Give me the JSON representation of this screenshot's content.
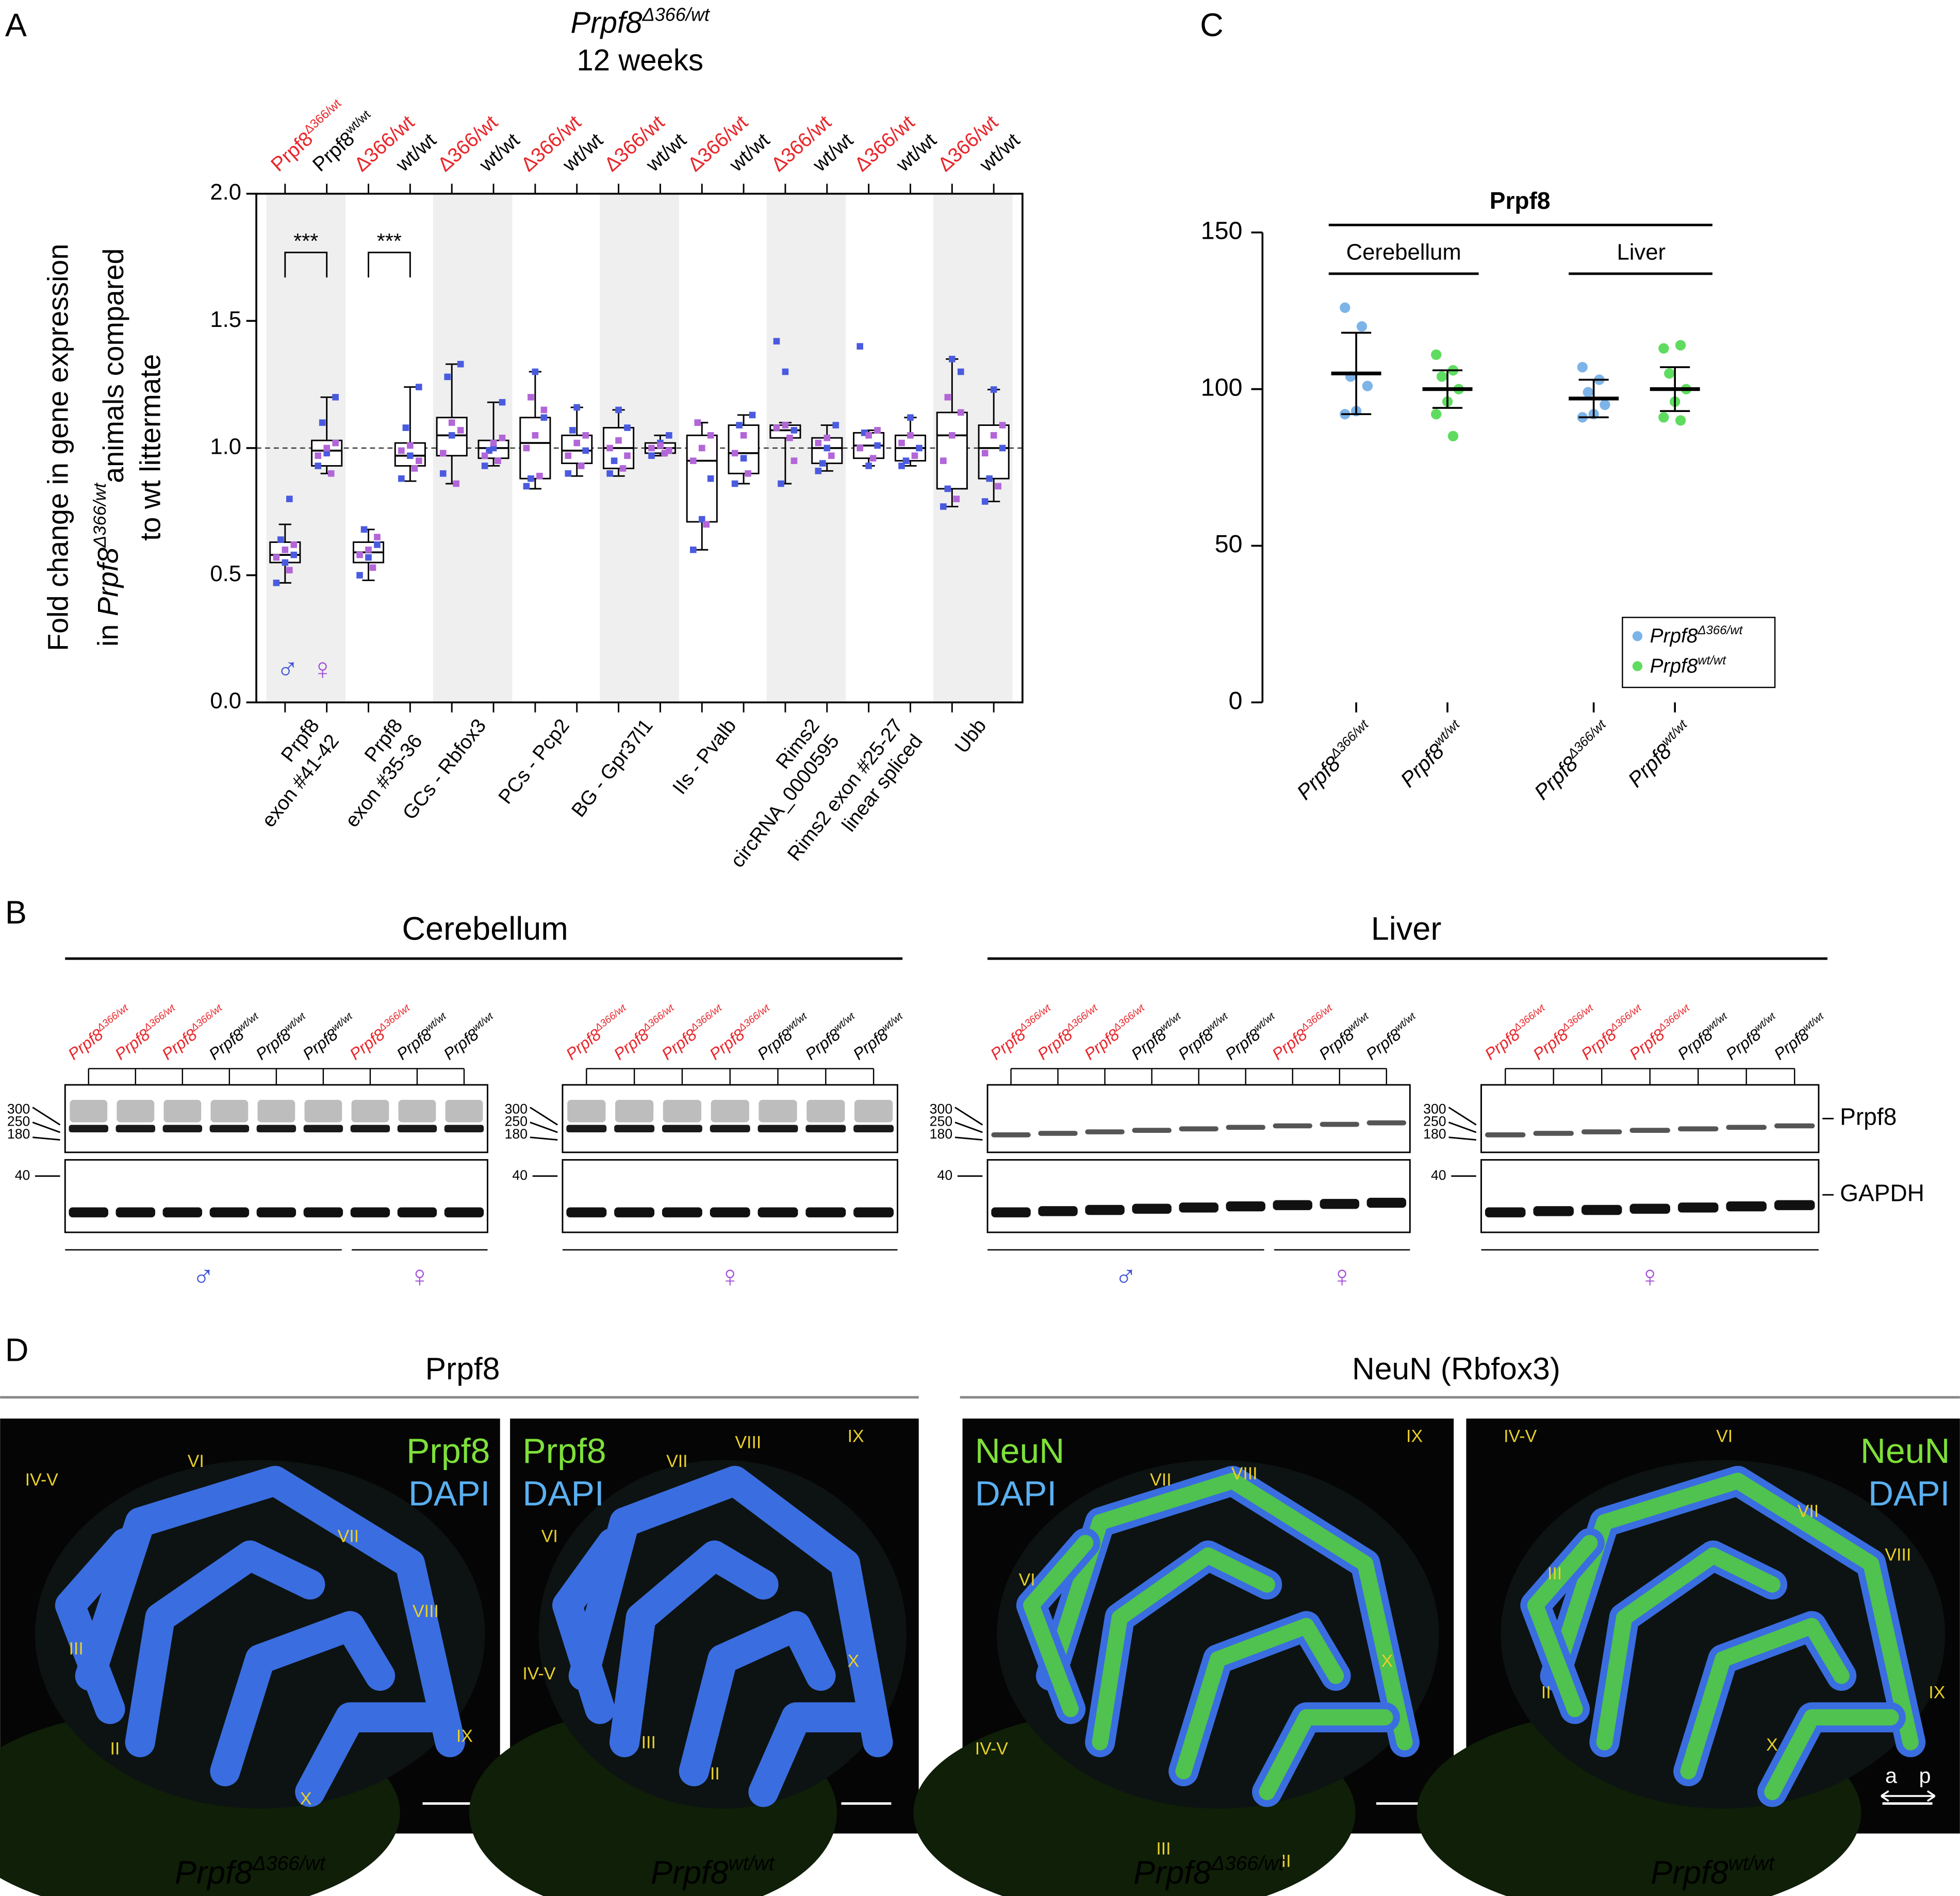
{
  "chart_data": [
    {
      "type": "box",
      "panel": "A",
      "title": {
        "text": "Prpf8",
        "sup": "Δ366/wt"
      },
      "subtitle": "12 weeks",
      "y_label": {
        "line1": "Fold change in gene expression",
        "line2_pre": "in ",
        "line2_gene": "Prpf8",
        "line2_sup": "Δ366/wt",
        "line2_post": "animals compared",
        "line3": "to wt littermate"
      },
      "ylim": [
        0,
        2
      ],
      "yticks": [
        {
          "value": 0,
          "label": "0.0"
        },
        0.5,
        {
          "value": 1,
          "label": "1.0"
        },
        1.5,
        {
          "value": 2,
          "label": "2.0"
        }
      ],
      "reference_line": 1,
      "shaded_pairs": [
        0,
        2,
        4,
        6,
        8
      ],
      "group_labels": [
        {
          "text": "Prpf8",
          "sup": "Δ366/wt",
          "color": "#e8262b"
        },
        {
          "text": "Prpf8",
          "sup": "wt/wt",
          "color": "#000000"
        },
        {
          "text": "Δ366/wt",
          "color": "#e8262b"
        },
        {
          "text": "wt/wt",
          "color": "#000000"
        },
        {
          "text": "Δ366/wt",
          "color": "#e8262b"
        },
        {
          "text": "wt/wt",
          "color": "#000000"
        },
        {
          "text": "Δ366/wt",
          "color": "#e8262b"
        },
        {
          "text": "wt/wt",
          "color": "#000000"
        },
        {
          "text": "Δ366/wt",
          "color": "#e8262b"
        },
        {
          "text": "wt/wt",
          "color": "#000000"
        },
        {
          "text": "Δ366/wt",
          "color": "#e8262b"
        },
        {
          "text": "wt/wt",
          "color": "#000000"
        },
        {
          "text": "Δ366/wt",
          "color": "#e8262b"
        },
        {
          "text": "wt/wt",
          "color": "#000000"
        },
        {
          "text": "Δ366/wt",
          "color": "#e8262b"
        },
        {
          "text": "wt/wt",
          "color": "#000000"
        },
        {
          "text": "Δ366/wt",
          "color": "#e8262b"
        },
        {
          "text": "wt/wt",
          "color": "#000000"
        }
      ],
      "category_lines": [
        [
          "Prpf8",
          "exon #41-42"
        ],
        [
          "Prpf8",
          "exon #35-36"
        ],
        [
          "GCs - Rbfox3"
        ],
        [
          "PCs - Pcp2"
        ],
        [
          "BG - Gpr37l1"
        ],
        [
          "IIs - Pvalb"
        ],
        [
          "Rims2",
          "circRNA_0000595"
        ],
        [
          "Rims2 exon #25-27",
          "linear spliced"
        ],
        [
          "Ubb"
        ]
      ],
      "significance": [
        {
          "pair": 0,
          "label": "***"
        },
        {
          "pair": 1,
          "label": "***"
        }
      ],
      "sex_legend": [
        {
          "symbol": "♂",
          "color": "#3b4fd8"
        },
        {
          "symbol": "♀",
          "color": "#a350d8"
        }
      ],
      "male_color": "#4a5be0",
      "female_color": "#b266d8",
      "boxes": [
        {
          "min": 0.47,
          "q1": 0.55,
          "median": 0.58,
          "q3": 0.63,
          "max": 0.7,
          "male": [
            0.47,
            0.55,
            0.58,
            0.64,
            0.8
          ],
          "female": [
            0.52,
            0.57,
            0.6,
            0.62
          ]
        },
        {
          "min": 0.9,
          "q1": 0.93,
          "median": 0.99,
          "q3": 1.03,
          "max": 1.2,
          "male": [
            0.93,
            0.98,
            1.2,
            1.1
          ],
          "female": [
            0.9,
            0.97,
            1.0,
            1.02
          ]
        },
        {
          "min": 0.48,
          "q1": 0.55,
          "median": 0.59,
          "q3": 0.63,
          "max": 0.68,
          "male": [
            0.5,
            0.57,
            0.62,
            0.68
          ],
          "female": [
            0.53,
            0.58,
            0.6,
            0.65
          ]
        },
        {
          "min": 0.87,
          "q1": 0.93,
          "median": 0.97,
          "q3": 1.02,
          "max": 1.24,
          "male": [
            0.88,
            0.97,
            1.24,
            1.08
          ],
          "female": [
            0.92,
            0.99,
            1.01,
            0.95
          ]
        },
        {
          "min": 0.86,
          "q1": 0.97,
          "median": 1.05,
          "q3": 1.12,
          "max": 1.33,
          "male": [
            0.9,
            1.05,
            1.33,
            1.28
          ],
          "female": [
            0.86,
            0.98,
            1.1,
            1.07
          ]
        },
        {
          "min": 0.93,
          "q1": 0.96,
          "median": 1.0,
          "q3": 1.03,
          "max": 1.18,
          "male": [
            0.93,
            1.0,
            1.18,
            0.99
          ],
          "female": [
            0.95,
            0.97,
            1.02,
            1.04
          ]
        },
        {
          "min": 0.84,
          "q1": 0.88,
          "median": 1.02,
          "q3": 1.12,
          "max": 1.3,
          "male": [
            0.85,
            1.3,
            1.12,
            0.88
          ],
          "female": [
            0.89,
            1.0,
            1.05,
            1.15,
            1.2
          ]
        },
        {
          "min": 0.89,
          "q1": 0.94,
          "median": 0.99,
          "q3": 1.05,
          "max": 1.16,
          "male": [
            0.9,
            1.16,
            0.99,
            1.07
          ],
          "female": [
            0.93,
            0.97,
            1.02,
            1.05
          ]
        },
        {
          "min": 0.89,
          "q1": 0.92,
          "median": 1.0,
          "q3": 1.08,
          "max": 1.15,
          "male": [
            0.9,
            1.15,
            1.08,
            0.95
          ],
          "female": [
            0.92,
            1.0,
            1.03,
            0.97
          ]
        },
        {
          "min": 0.97,
          "q1": 0.98,
          "median": 1.0,
          "q3": 1.02,
          "max": 1.05,
          "male": [
            0.97,
            1.02,
            1.05
          ],
          "female": [
            0.98,
            1.0,
            1.01,
            0.99
          ]
        },
        {
          "min": 0.6,
          "q1": 0.71,
          "median": 0.95,
          "q3": 1.05,
          "max": 1.1,
          "male": [
            0.6,
            0.72,
            0.88,
            1.1
          ],
          "female": [
            0.7,
            0.95,
            1.0,
            1.05,
            1.1
          ]
        },
        {
          "min": 0.86,
          "q1": 0.9,
          "median": 0.98,
          "q3": 1.09,
          "max": 1.13,
          "male": [
            0.86,
            0.96,
            1.13,
            1.09
          ],
          "female": [
            0.9,
            0.98,
            1.05
          ]
        },
        {
          "min": 0.86,
          "q1": 1.04,
          "median": 1.07,
          "q3": 1.09,
          "max": 1.1,
          "male": [
            1.42,
            1.3,
            1.07,
            0.86
          ],
          "female": [
            1.04,
            1.08,
            1.09,
            0.95
          ]
        },
        {
          "min": 0.91,
          "q1": 0.94,
          "median": 1.0,
          "q3": 1.04,
          "max": 1.09,
          "male": [
            0.91,
            1.0,
            1.09,
            0.94
          ],
          "female": [
            0.97,
            1.02,
            1.04
          ]
        },
        {
          "min": 0.93,
          "q1": 0.96,
          "median": 1.01,
          "q3": 1.06,
          "max": 1.07,
          "male": [
            1.4,
            0.93,
            1.01,
            1.06
          ],
          "female": [
            0.96,
            1.0,
            1.05,
            1.07
          ]
        },
        {
          "min": 0.93,
          "q1": 0.95,
          "median": 1.0,
          "q3": 1.05,
          "max": 1.12,
          "male": [
            0.93,
            1.12,
            1.0,
            0.95
          ],
          "female": [
            0.97,
            1.02,
            1.05
          ]
        },
        {
          "min": 0.77,
          "q1": 0.84,
          "median": 1.05,
          "q3": 1.14,
          "max": 1.35,
          "male": [
            0.77,
            1.35,
            1.3,
            0.84
          ],
          "female": [
            0.8,
            0.95,
            1.05,
            1.14,
            1.2
          ]
        },
        {
          "min": 0.79,
          "q1": 0.88,
          "median": 1.0,
          "q3": 1.09,
          "max": 1.23,
          "male": [
            0.79,
            1.23,
            1.0,
            0.88
          ],
          "female": [
            0.85,
            0.98,
            1.05,
            1.09
          ]
        }
      ]
    },
    {
      "type": "dot",
      "panel": "C",
      "header": "Prpf8",
      "subgroups": [
        "Cerebellum",
        "Liver"
      ],
      "categories": [
        {
          "text": "Prpf8",
          "sup": "Δ366/wt"
        },
        {
          "text": "Prpf8",
          "sup": "wt/wt"
        },
        {
          "text": "Prpf8",
          "sup": "Δ366/wt"
        },
        {
          "text": "Prpf8",
          "sup": "wt/wt"
        }
      ],
      "colors": [
        "#7db4e8",
        "#5fdc5f",
        "#7db4e8",
        "#5fdc5f"
      ],
      "points": [
        [
          126,
          120,
          104,
          101,
          93,
          92
        ],
        [
          111,
          106,
          104,
          100,
          96,
          92,
          85
        ],
        [
          107,
          103,
          99,
          95,
          92,
          91
        ],
        [
          113,
          114,
          105,
          100,
          96,
          91,
          90
        ]
      ],
      "mean": [
        105,
        100,
        97,
        100
      ],
      "sd": [
        13,
        6,
        6,
        7
      ],
      "ylim": [
        0,
        150
      ],
      "yticks": [
        0,
        50,
        100,
        150
      ],
      "legend": [
        {
          "text": "Prpf8",
          "sup": "Δ366/wt",
          "color": "#7db4e8"
        },
        {
          "text": "Prpf8",
          "sup": "wt/wt",
          "color": "#5fdc5f"
        }
      ],
      "legend_position": "lower right"
    }
  ],
  "panel_b": {
    "label": "B",
    "markers_top": [
      "300",
      "250",
      "180"
    ],
    "markers_bottom": [
      "40"
    ],
    "bands": [
      "Prpf8",
      "GAPDH"
    ],
    "tissues": [
      {
        "title": "Cerebellum",
        "blots": [
          {
            "lanes": [
              {
                "text": "Prpf8",
                "sup": "Δ366/wt",
                "color": "#e8262b"
              },
              {
                "text": "Prpf8",
                "sup": "Δ366/wt",
                "color": "#e8262b"
              },
              {
                "text": "Prpf8",
                "sup": "Δ366/wt",
                "color": "#e8262b"
              },
              {
                "text": "Prpf8",
                "sup": "wt/wt",
                "color": "#000000"
              },
              {
                "text": "Prpf8",
                "sup": "wt/wt",
                "color": "#000000"
              },
              {
                "text": "Prpf8",
                "sup": "wt/wt",
                "color": "#000000"
              },
              {
                "text": "Prpf8",
                "sup": "Δ366/wt",
                "color": "#e8262b"
              },
              {
                "text": "Prpf8",
                "sup": "wt/wt",
                "color": "#000000"
              },
              {
                "text": "Prpf8",
                "sup": "wt/wt",
                "color": "#000000"
              }
            ],
            "sexes": [
              {
                "symbol": "♂",
                "color": "#3b4fd8",
                "lanes": 6
              },
              {
                "symbol": "♀",
                "color": "#a350d8",
                "lanes": 3
              }
            ]
          },
          {
            "lanes": [
              {
                "text": "Prpf8",
                "sup": "Δ366/wt",
                "color": "#e8262b"
              },
              {
                "text": "Prpf8",
                "sup": "Δ366/wt",
                "color": "#e8262b"
              },
              {
                "text": "Prpf8",
                "sup": "Δ366/wt",
                "color": "#e8262b"
              },
              {
                "text": "Prpf8",
                "sup": "Δ366/wt",
                "color": "#e8262b"
              },
              {
                "text": "Prpf8",
                "sup": "wt/wt",
                "color": "#000000"
              },
              {
                "text": "Prpf8",
                "sup": "wt/wt",
                "color": "#000000"
              },
              {
                "text": "Prpf8",
                "sup": "wt/wt",
                "color": "#000000"
              }
            ],
            "sexes": [
              {
                "symbol": "♀",
                "color": "#a350d8",
                "lanes": 7
              }
            ]
          }
        ]
      },
      {
        "title": "Liver",
        "blots": [
          {
            "lanes": [
              {
                "text": "Prpf8",
                "sup": "Δ366/wt",
                "color": "#e8262b"
              },
              {
                "text": "Prpf8",
                "sup": "Δ366/wt",
                "color": "#e8262b"
              },
              {
                "text": "Prpf8",
                "sup": "Δ366/wt",
                "color": "#e8262b"
              },
              {
                "text": "Prpf8",
                "sup": "wt/wt",
                "color": "#000000"
              },
              {
                "text": "Prpf8",
                "sup": "wt/wt",
                "color": "#000000"
              },
              {
                "text": "Prpf8",
                "sup": "wt/wt",
                "color": "#000000"
              },
              {
                "text": "Prpf8",
                "sup": "Δ366/wt",
                "color": "#e8262b"
              },
              {
                "text": "Prpf8",
                "sup": "wt/wt",
                "color": "#000000"
              },
              {
                "text": "Prpf8",
                "sup": "wt/wt",
                "color": "#000000"
              }
            ],
            "sexes": [
              {
                "symbol": "♂",
                "color": "#3b4fd8",
                "lanes": 6
              },
              {
                "symbol": "♀",
                "color": "#a350d8",
                "lanes": 3
              }
            ]
          },
          {
            "lanes": [
              {
                "text": "Prpf8",
                "sup": "Δ366/wt",
                "color": "#e8262b"
              },
              {
                "text": "Prpf8",
                "sup": "Δ366/wt",
                "color": "#e8262b"
              },
              {
                "text": "Prpf8",
                "sup": "Δ366/wt",
                "color": "#e8262b"
              },
              {
                "text": "Prpf8",
                "sup": "Δ366/wt",
                "color": "#e8262b"
              },
              {
                "text": "Prpf8",
                "sup": "wt/wt",
                "color": "#000000"
              },
              {
                "text": "Prpf8",
                "sup": "wt/wt",
                "color": "#000000"
              },
              {
                "text": "Prpf8",
                "sup": "wt/wt",
                "color": "#000000"
              }
            ],
            "sexes": [
              {
                "symbol": "♀",
                "color": "#a350d8",
                "lanes": 7
              }
            ]
          }
        ]
      }
    ]
  },
  "panel_d": {
    "label": "D",
    "headers": [
      "Prpf8",
      "NeuN (Rbfox3)"
    ],
    "orientation": [
      "a",
      "p"
    ],
    "images": [
      {
        "stains": [
          {
            "text": "Prpf8",
            "color": "#7ee03a"
          },
          {
            "text": "DAPI",
            "color": "#5ab0f0"
          }
        ],
        "lobules": [
          "IV-V",
          "VI",
          "VII",
          "VIII",
          "III",
          "II",
          "IX",
          "X"
        ],
        "caption": {
          "text": "Prpf8",
          "sup": "Δ366/wt"
        }
      },
      {
        "stains": [
          {
            "text": "Prpf8",
            "color": "#7ee03a"
          },
          {
            "text": "DAPI",
            "color": "#5ab0f0"
          }
        ],
        "lobules": [
          "VII",
          "VIII",
          "IX",
          "VI",
          "X",
          "IV-V",
          "III",
          "II"
        ],
        "caption": {
          "text": "Prpf8",
          "sup": "wt/wt"
        }
      },
      {
        "stains": [
          {
            "text": "NeuN",
            "color": "#7ee03a"
          },
          {
            "text": "DAPI",
            "color": "#5ab0f0"
          }
        ],
        "lobules": [
          "IX",
          "VII",
          "VIII",
          "VI",
          "X",
          "IV-V",
          "III",
          "II"
        ],
        "caption": {
          "text": "Prpf8",
          "sup": "Δ366/wt"
        }
      },
      {
        "stains": [
          {
            "text": "NeuN",
            "color": "#7ee03a"
          },
          {
            "text": "DAPI",
            "color": "#5ab0f0"
          }
        ],
        "lobules": [
          "IV-V",
          "VI",
          "VII",
          "VIII",
          "III",
          "II",
          "IX",
          "X"
        ],
        "caption": {
          "text": "Prpf8",
          "sup": "wt/wt"
        }
      }
    ]
  }
}
